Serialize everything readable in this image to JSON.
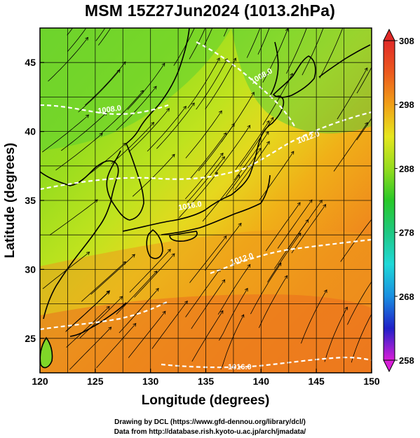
{
  "title": "MSM 15Z27Jun2024 (1013.2hPa)",
  "x_axis": {
    "label": "Longitude (degrees)",
    "range": [
      120,
      150
    ],
    "ticks": [
      "120",
      "125",
      "130",
      "135",
      "140",
      "145",
      "150"
    ]
  },
  "y_axis": {
    "label": "Latitude  (degrees)",
    "range": [
      22.5,
      47.5
    ],
    "ticks": [
      "25",
      "30",
      "35",
      "40",
      "45"
    ]
  },
  "colorbar": {
    "range": [
      258,
      308
    ],
    "ticks": [
      "258",
      "268",
      "278",
      "288",
      "298",
      "308"
    ],
    "colors": [
      "#d81fd8",
      "#2020c8",
      "#1a8fe0",
      "#1fd8d8",
      "#1fc882",
      "#28c828",
      "#96dc1e",
      "#e6e61e",
      "#f0a018",
      "#ec5a1e",
      "#e02a28"
    ]
  },
  "contour_labels": [
    "1016.0",
    "1008.0",
    "1008.0",
    "1012.0",
    "1012.0",
    "1016.0"
  ],
  "map_colors": {
    "land_coast": "#000000",
    "contour": "#ffffff",
    "streamline": "#000000",
    "grid": "#000000"
  },
  "credits": {
    "line1": "Drawing by DCL (https://www.gfd-dennou.org/library/dcl/)",
    "line2": "Data from http://database.rish.kyoto-u.ac.jp/arch/jmadata/"
  }
}
